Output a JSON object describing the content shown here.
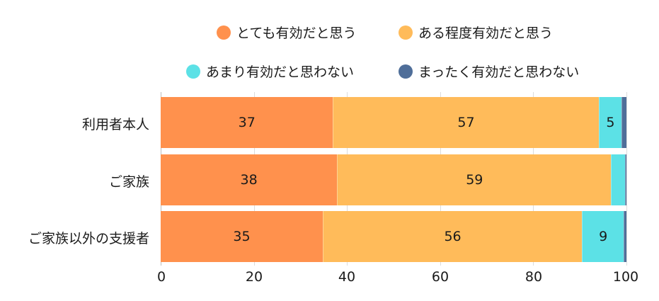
{
  "chart_data": {
    "type": "bar",
    "orientation": "horizontal",
    "stacked": true,
    "title": "",
    "xlabel": "",
    "ylabel": "",
    "xlim": [
      0,
      100
    ],
    "xticks": [
      "0",
      "20",
      "40",
      "60",
      "80",
      "100"
    ],
    "grid": true,
    "legend_position": "top",
    "categories": [
      "利用者本人",
      "ご家族",
      "ご家族以外の支援者"
    ],
    "series": [
      {
        "name": "とても有効だと思う",
        "color": "#FF914D",
        "values": [
          37,
          38,
          35
        ],
        "labels": [
          "37",
          "38",
          "35"
        ]
      },
      {
        "name": "ある程度有効だと思う",
        "color": "#FFBB5A",
        "values": [
          57,
          59,
          56
        ],
        "labels": [
          "57",
          "59",
          "56"
        ]
      },
      {
        "name": "あまり有効だと思わない",
        "color": "#5CE1E6",
        "values": [
          5,
          3,
          9
        ],
        "labels": [
          "5",
          "",
          "9"
        ]
      },
      {
        "name": "まったく有効だと思わない",
        "color": "#4F6E99",
        "values": [
          1,
          0.3,
          0.6
        ],
        "labels": [
          "",
          "",
          ""
        ]
      }
    ]
  },
  "legend": [
    {
      "label": "とても有効だと思う",
      "color": "#FF914D"
    },
    {
      "label": "ある程度有効だと思う",
      "color": "#FFBB5A"
    },
    {
      "label": "あまり有効だと思わない",
      "color": "#5CE1E6"
    },
    {
      "label": "まったく有効だと思わない",
      "color": "#4F6E99"
    }
  ],
  "rows": [
    {
      "label": "利用者本人",
      "segments": [
        {
          "value": 37,
          "label": "37",
          "color": "#FF914D"
        },
        {
          "value": 57,
          "label": "57",
          "color": "#FFBB5A"
        },
        {
          "value": 5,
          "label": "5",
          "color": "#5CE1E6"
        },
        {
          "value": 1,
          "label": "",
          "color": "#4F6E99"
        }
      ]
    },
    {
      "label": "ご家族",
      "segments": [
        {
          "value": 38,
          "label": "38",
          "color": "#FF914D"
        },
        {
          "value": 59,
          "label": "59",
          "color": "#FFBB5A"
        },
        {
          "value": 3,
          "label": "",
          "color": "#5CE1E6"
        },
        {
          "value": 0.3,
          "label": "",
          "color": "#4F6E99"
        }
      ]
    },
    {
      "label": "ご家族以外の支援者",
      "segments": [
        {
          "value": 35,
          "label": "35",
          "color": "#FF914D"
        },
        {
          "value": 56,
          "label": "56",
          "color": "#FFBB5A"
        },
        {
          "value": 9,
          "label": "9",
          "color": "#5CE1E6"
        },
        {
          "value": 0.6,
          "label": "",
          "color": "#4F6E99"
        }
      ]
    }
  ],
  "axis": {
    "ticks": [
      "0",
      "20",
      "40",
      "60",
      "80",
      "100"
    ]
  }
}
